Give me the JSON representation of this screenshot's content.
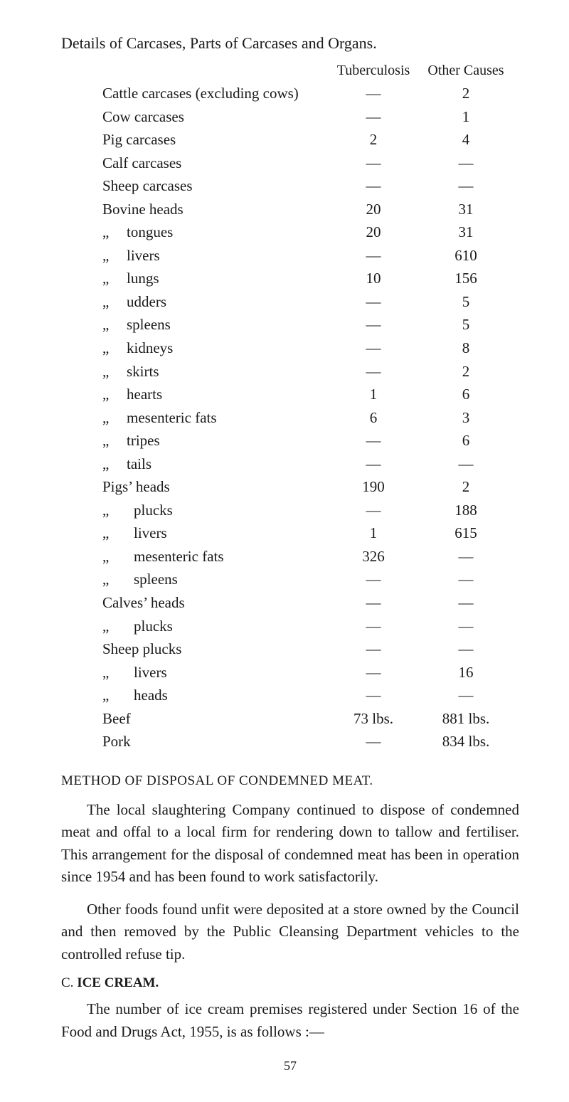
{
  "title": "Details of Carcases, Parts of Carcases and Organs.",
  "columns": {
    "tb": "Tuberculosis",
    "oc": "Other Causes"
  },
  "rows": [
    {
      "label": "Cattle carcases (excluding cows)",
      "indent": 0,
      "tb": "—",
      "oc": "2"
    },
    {
      "label": "Cow carcases",
      "indent": 0,
      "tb": "—",
      "oc": "1"
    },
    {
      "label": "Pig carcases",
      "indent": 0,
      "tb": "2",
      "oc": "4"
    },
    {
      "label": "Calf carcases",
      "indent": 0,
      "tb": "—",
      "oc": "—"
    },
    {
      "label": "Sheep carcases",
      "indent": 0,
      "tb": "—",
      "oc": "—"
    },
    {
      "label": "Bovine heads",
      "indent": 0,
      "tb": "20",
      "oc": "31"
    },
    {
      "label": "tongues",
      "prefix": "„",
      "indent": 1,
      "tb": "20",
      "oc": "31"
    },
    {
      "label": "livers",
      "prefix": "„",
      "indent": 1,
      "tb": "—",
      "oc": "610"
    },
    {
      "label": "lungs",
      "prefix": "„",
      "indent": 1,
      "tb": "10",
      "oc": "156"
    },
    {
      "label": "udders",
      "prefix": "„",
      "indent": 1,
      "tb": "—",
      "oc": "5"
    },
    {
      "label": "spleens",
      "prefix": "„",
      "indent": 1,
      "tb": "—",
      "oc": "5"
    },
    {
      "label": "kidneys",
      "prefix": "„",
      "indent": 1,
      "tb": "—",
      "oc": "8"
    },
    {
      "label": "skirts",
      "prefix": "„",
      "indent": 1,
      "tb": "—",
      "oc": "2"
    },
    {
      "label": "hearts",
      "prefix": "„",
      "indent": 1,
      "tb": "1",
      "oc": "6"
    },
    {
      "label": "mesenteric fats",
      "prefix": "„",
      "indent": 1,
      "tb": "6",
      "oc": "3"
    },
    {
      "label": "tripes",
      "prefix": "„",
      "indent": 1,
      "tb": "—",
      "oc": "6"
    },
    {
      "label": "tails",
      "prefix": "„",
      "indent": 1,
      "tb": "—",
      "oc": "—"
    },
    {
      "label": "Pigs’ heads",
      "indent": 0,
      "tb": "190",
      "oc": "2"
    },
    {
      "label": "plucks",
      "prefix": "„",
      "indent": 2,
      "tb": "—",
      "oc": "188"
    },
    {
      "label": "livers",
      "prefix": "„",
      "indent": 2,
      "tb": "1",
      "oc": "615"
    },
    {
      "label": "mesenteric fats",
      "prefix": "„",
      "indent": 2,
      "tb": "326",
      "oc": "—"
    },
    {
      "label": "spleens",
      "prefix": "„",
      "indent": 2,
      "tb": "—",
      "oc": "—"
    },
    {
      "label": "Calves’ heads",
      "indent": 0,
      "tb": "—",
      "oc": "—"
    },
    {
      "label": "plucks",
      "prefix": "„",
      "indent": 2,
      "tb": "—",
      "oc": "—"
    },
    {
      "label": "Sheep plucks",
      "indent": 0,
      "tb": "—",
      "oc": "—"
    },
    {
      "label": "livers",
      "prefix": "„",
      "indent": 2,
      "tb": "—",
      "oc": "16"
    },
    {
      "label": "heads",
      "prefix": "„",
      "indent": 2,
      "tb": "—",
      "oc": "—"
    },
    {
      "label": "Beef",
      "indent": 0,
      "tb": "73 lbs.",
      "oc": "881 lbs."
    },
    {
      "label": "Pork",
      "indent": 0,
      "tb": "—",
      "oc": "834 lbs."
    }
  ],
  "method_head": "METHOD OF DISPOSAL OF CONDEMNED MEAT.",
  "para1": "The local slaughtering Company continued to dispose of condemned meat and offal to a local firm for rendering down to tallow and fertiliser. This arrangement for the disposal of condemned meat has been in operation since 1954 and has been found to work satisfactorily.",
  "para2": "Other foods found unfit were deposited at a store owned by the Council and then removed by the Public Cleansing Department vehicles to the controlled refuse tip.",
  "sub_head_letter": "C.",
  "sub_head_bold": "ICE CREAM.",
  "para3": "The number of ice cream premises registered under Section 16 of the Food and Drugs Act, 1955, is as follows :—",
  "page_num": "57",
  "style": {
    "bg": "#ffffff",
    "text": "#1a1a1a",
    "body_font_size": 21,
    "title_font_size": 22
  }
}
